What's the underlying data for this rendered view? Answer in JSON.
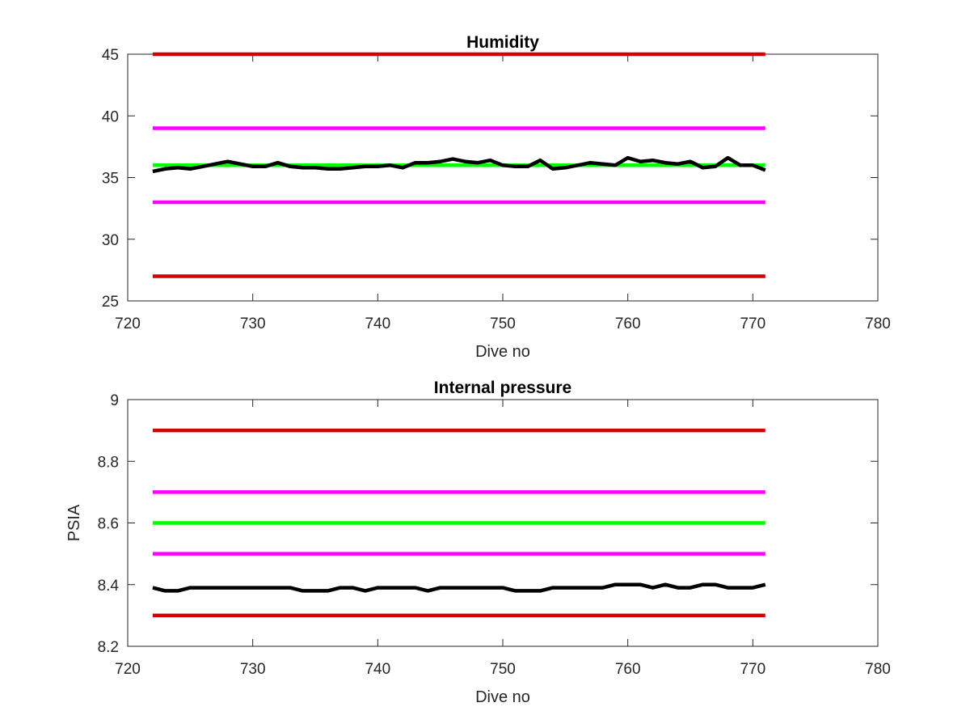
{
  "chart_data": [
    {
      "type": "line",
      "title": "Humidity",
      "xlabel": "Dive no",
      "ylabel": "",
      "xlim": [
        720,
        780
      ],
      "ylim": [
        25,
        45
      ],
      "xticks": [
        720,
        730,
        740,
        750,
        760,
        770,
        780
      ],
      "yticks": [
        25,
        30,
        35,
        40,
        45
      ],
      "grid": false,
      "series": [
        {
          "color": "#d40000",
          "x": [
            722,
            771
          ],
          "y": [
            45,
            45
          ]
        },
        {
          "color": "#ff00ff",
          "x": [
            722,
            771
          ],
          "y": [
            39,
            39
          ]
        },
        {
          "color": "#00ff00",
          "x": [
            722,
            771
          ],
          "y": [
            36,
            36
          ]
        },
        {
          "color": "#ff00ff",
          "x": [
            722,
            771
          ],
          "y": [
            33,
            33
          ]
        },
        {
          "color": "#d40000",
          "x": [
            722,
            771
          ],
          "y": [
            27,
            27
          ]
        },
        {
          "color": "#000000",
          "x": [
            722,
            723,
            724,
            725,
            726,
            727,
            728,
            729,
            730,
            731,
            732,
            733,
            734,
            735,
            736,
            737,
            738,
            739,
            740,
            741,
            742,
            743,
            744,
            745,
            746,
            747,
            748,
            749,
            750,
            751,
            752,
            753,
            754,
            755,
            756,
            757,
            758,
            759,
            760,
            761,
            762,
            763,
            764,
            765,
            766,
            767,
            768,
            769,
            770,
            771
          ],
          "y": [
            35.5,
            35.7,
            35.8,
            35.7,
            35.9,
            36.1,
            36.3,
            36.1,
            35.9,
            35.9,
            36.2,
            35.9,
            35.8,
            35.8,
            35.7,
            35.7,
            35.8,
            35.9,
            35.9,
            36.0,
            35.8,
            36.2,
            36.2,
            36.3,
            36.5,
            36.3,
            36.2,
            36.4,
            36.0,
            35.9,
            35.9,
            36.4,
            35.7,
            35.8,
            36.0,
            36.2,
            36.1,
            36.0,
            36.6,
            36.3,
            36.4,
            36.2,
            36.1,
            36.3,
            35.8,
            35.9,
            36.6,
            36.0,
            36.0,
            35.6
          ]
        }
      ]
    },
    {
      "type": "line",
      "title": "Internal pressure",
      "xlabel": "Dive no",
      "ylabel": "PSIA",
      "xlim": [
        720,
        780
      ],
      "ylim": [
        8.2,
        9
      ],
      "xticks": [
        720,
        730,
        740,
        750,
        760,
        770,
        780
      ],
      "yticks": [
        8.2,
        8.4,
        8.6,
        8.8,
        9
      ],
      "ytick_labels": [
        "8.2",
        "8.4",
        "8.6",
        "8.8",
        "9"
      ],
      "grid": false,
      "series": [
        {
          "color": "#d40000",
          "x": [
            722,
            771
          ],
          "y": [
            8.9,
            8.9
          ]
        },
        {
          "color": "#ff00ff",
          "x": [
            722,
            771
          ],
          "y": [
            8.7,
            8.7
          ]
        },
        {
          "color": "#00ff00",
          "x": [
            722,
            771
          ],
          "y": [
            8.6,
            8.6
          ]
        },
        {
          "color": "#ff00ff",
          "x": [
            722,
            771
          ],
          "y": [
            8.5,
            8.5
          ]
        },
        {
          "color": "#d40000",
          "x": [
            722,
            771
          ],
          "y": [
            8.3,
            8.3
          ]
        },
        {
          "color": "#000000",
          "x": [
            722,
            723,
            724,
            725,
            726,
            727,
            728,
            729,
            730,
            731,
            732,
            733,
            734,
            735,
            736,
            737,
            738,
            739,
            740,
            741,
            742,
            743,
            744,
            745,
            746,
            747,
            748,
            749,
            750,
            751,
            752,
            753,
            754,
            755,
            756,
            757,
            758,
            759,
            760,
            761,
            762,
            763,
            764,
            765,
            766,
            767,
            768,
            769,
            770,
            771
          ],
          "y": [
            8.39,
            8.38,
            8.38,
            8.39,
            8.39,
            8.39,
            8.39,
            8.39,
            8.39,
            8.39,
            8.39,
            8.39,
            8.38,
            8.38,
            8.38,
            8.39,
            8.39,
            8.38,
            8.39,
            8.39,
            8.39,
            8.39,
            8.38,
            8.39,
            8.39,
            8.39,
            8.39,
            8.39,
            8.39,
            8.38,
            8.38,
            8.38,
            8.39,
            8.39,
            8.39,
            8.39,
            8.39,
            8.4,
            8.4,
            8.4,
            8.39,
            8.4,
            8.39,
            8.39,
            8.4,
            8.4,
            8.39,
            8.39,
            8.39,
            8.4
          ]
        }
      ]
    }
  ]
}
